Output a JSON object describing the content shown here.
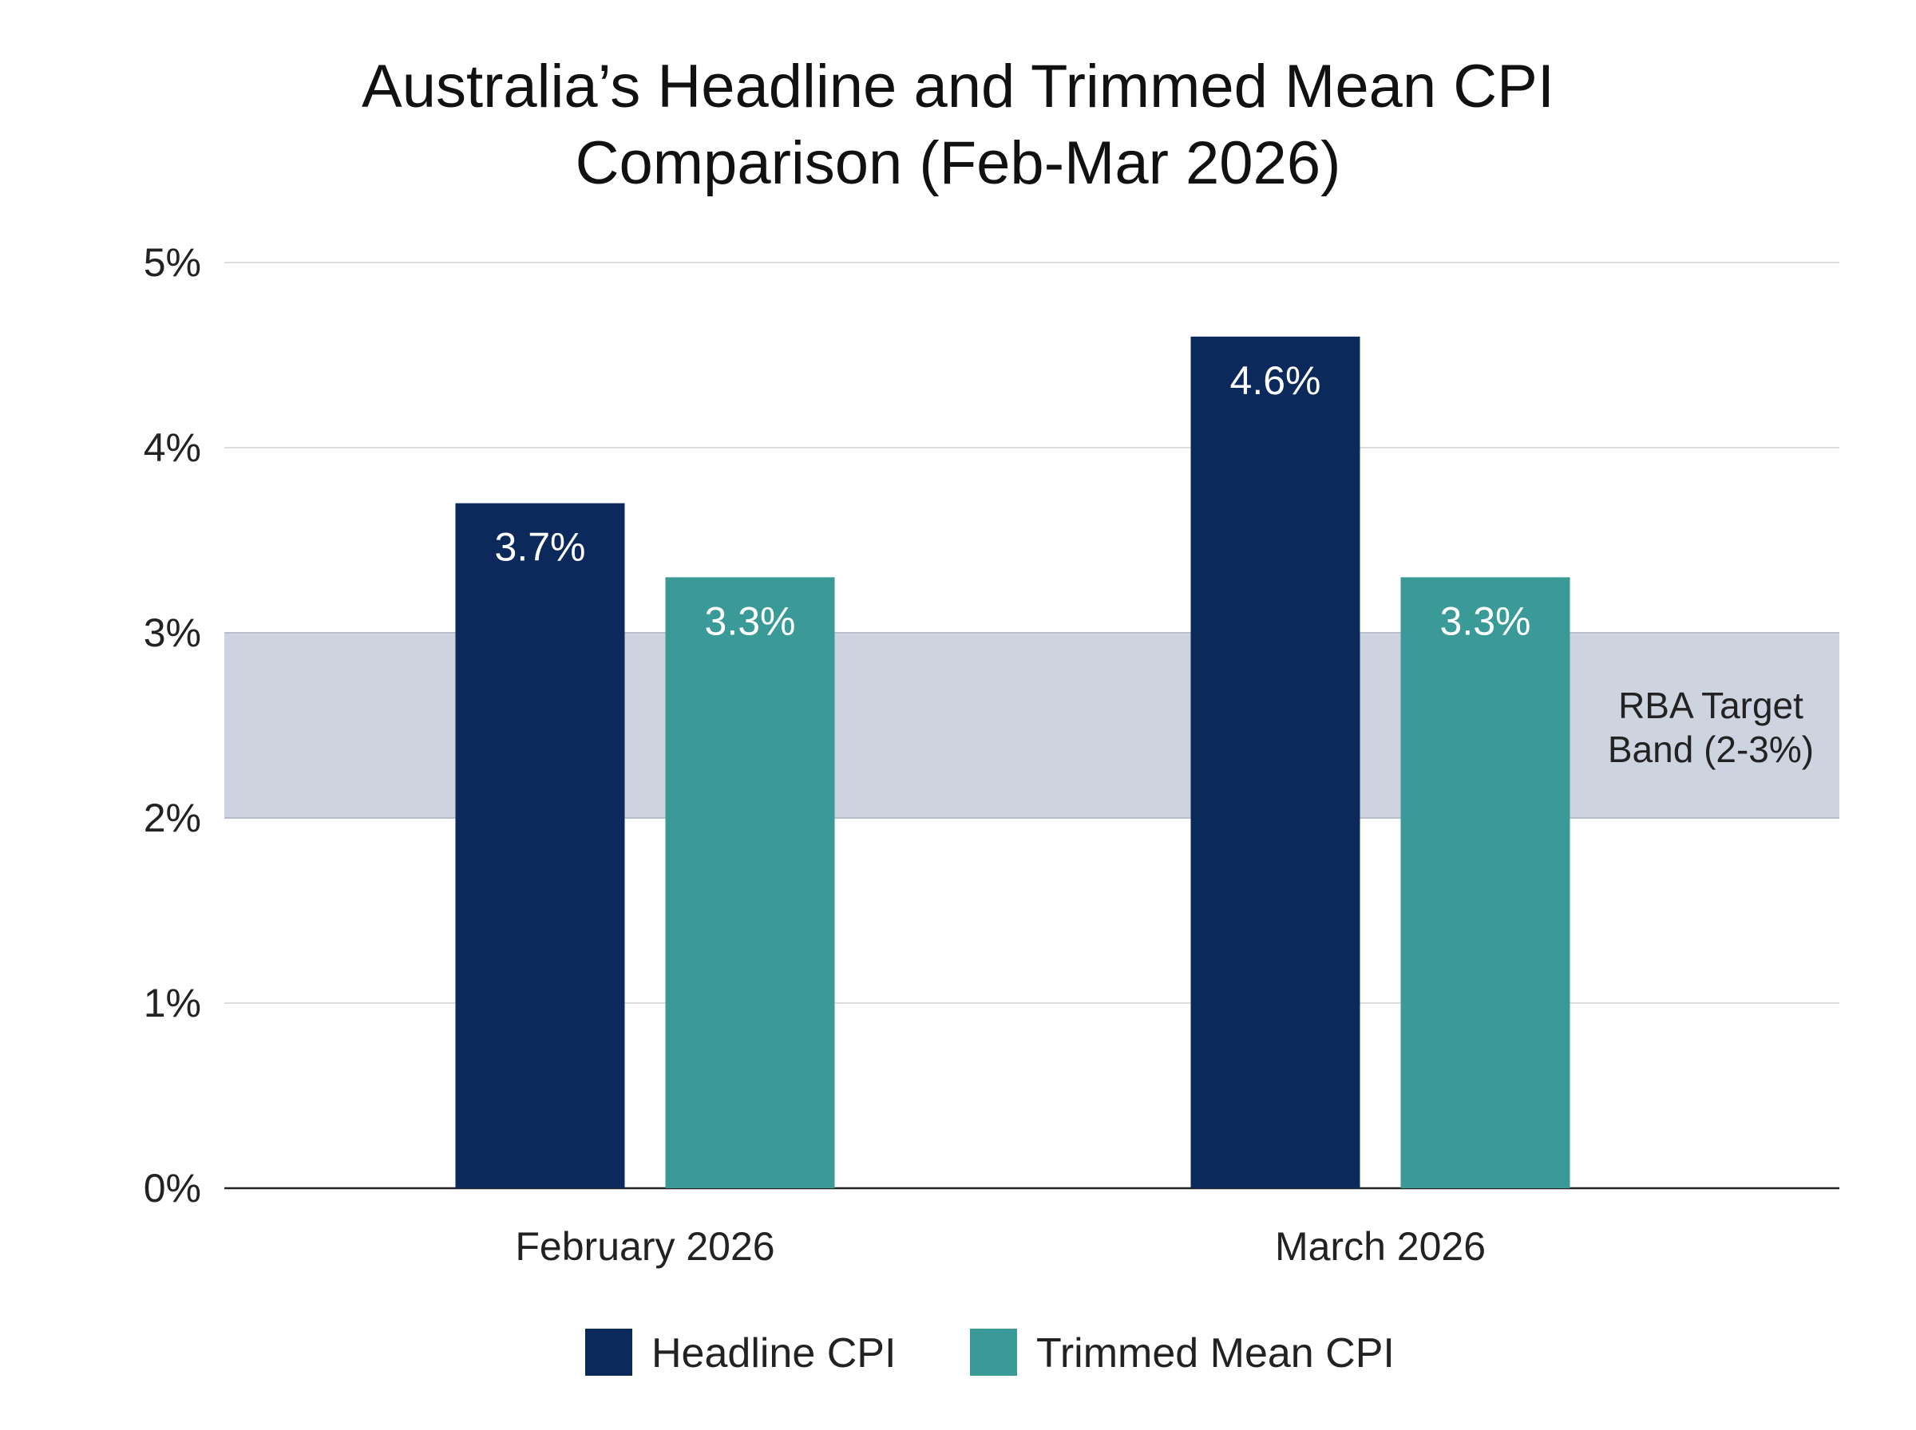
{
  "chart_data": {
    "type": "bar",
    "title": [
      "Australia’s Headline and Trimmed Mean CPI",
      "Comparison (Feb-Mar 2026)"
    ],
    "xlabel": "",
    "ylabel": "",
    "ylim": [
      0,
      5
    ],
    "yticks": [
      0,
      1,
      2,
      3,
      4,
      5
    ],
    "ytick_labels": [
      "0%",
      "1%",
      "2%",
      "3%",
      "4%",
      "5%"
    ],
    "grid": true,
    "categories": [
      "February 2026",
      "March 2026"
    ],
    "series": [
      {
        "name": "Headline CPI",
        "values": [
          3.7,
          4.6
        ],
        "labels": [
          "3.7%",
          "4.6%"
        ],
        "color": "#0B2A5B"
      },
      {
        "name": "Trimmed Mean CPI",
        "values": [
          3.3,
          3.3
        ],
        "labels": [
          "3.3%",
          "3.3%"
        ],
        "color": "#3A9A97"
      }
    ],
    "band": {
      "from": 2,
      "to": 3,
      "label": [
        "RBA Target",
        "Band (2-3%)"
      ],
      "color": "#CDD3DF"
    },
    "legend": "bottom-center"
  }
}
